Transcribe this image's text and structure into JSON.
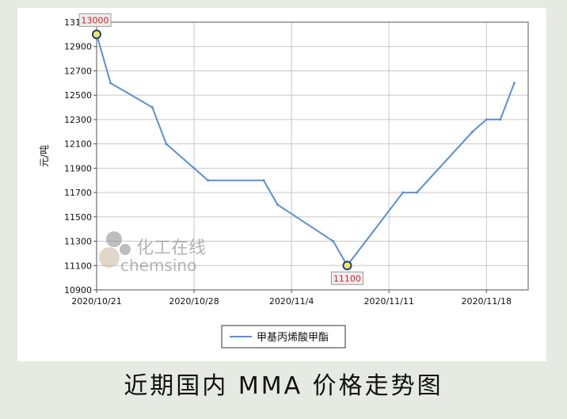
{
  "caption": "近期国内 MMA 价格走势图",
  "watermark": {
    "cn": "化工在线",
    "en": "chemsino"
  },
  "colors": {
    "background": "#e5ebe3",
    "line": "#5b8fd4",
    "grid": "#c8c8c8",
    "label_text": "#d42020"
  },
  "chart_data": {
    "type": "line",
    "title": "",
    "xlabel": "",
    "ylabel": "元/吨",
    "x_tick_labels": [
      "2020/10/21",
      "2020/10/28",
      "2020/11/4",
      "2020/11/11",
      "2020/11/18"
    ],
    "xlim": [
      "2020/10/21",
      "2020/11/21"
    ],
    "y_tick_labels": [
      "10900",
      "11100",
      "11300",
      "11500",
      "11700",
      "11900",
      "12100",
      "12300",
      "12500",
      "12700",
      "12900",
      "13100"
    ],
    "ylim": [
      10900,
      13100
    ],
    "grid": true,
    "legend": {
      "position": "bottom",
      "entries": [
        "甲基丙烯酸甲酯"
      ]
    },
    "series": [
      {
        "name": "甲基丙烯酸甲酯",
        "points": [
          {
            "x": "2020/10/21",
            "y": 13000
          },
          {
            "x": "2020/10/22",
            "y": 12600
          },
          {
            "x": "2020/10/25",
            "y": 12400
          },
          {
            "x": "2020/10/26",
            "y": 12100
          },
          {
            "x": "2020/10/28",
            "y": 11900
          },
          {
            "x": "2020/10/29",
            "y": 11800
          },
          {
            "x": "2020/11/2",
            "y": 11800
          },
          {
            "x": "2020/11/3",
            "y": 11600
          },
          {
            "x": "2020/11/7",
            "y": 11300
          },
          {
            "x": "2020/11/8",
            "y": 11100
          },
          {
            "x": "2020/11/12",
            "y": 11700
          },
          {
            "x": "2020/11/13",
            "y": 11700
          },
          {
            "x": "2020/11/17",
            "y": 12200
          },
          {
            "x": "2020/11/18",
            "y": 12300
          },
          {
            "x": "2020/11/19",
            "y": 12300
          },
          {
            "x": "2020/11/20",
            "y": 12600
          }
        ]
      }
    ],
    "annotations": [
      {
        "x": "2020/10/21",
        "y": 13000,
        "label": "13000"
      },
      {
        "x": "2020/11/8",
        "y": 11100,
        "label": "11100"
      }
    ]
  }
}
